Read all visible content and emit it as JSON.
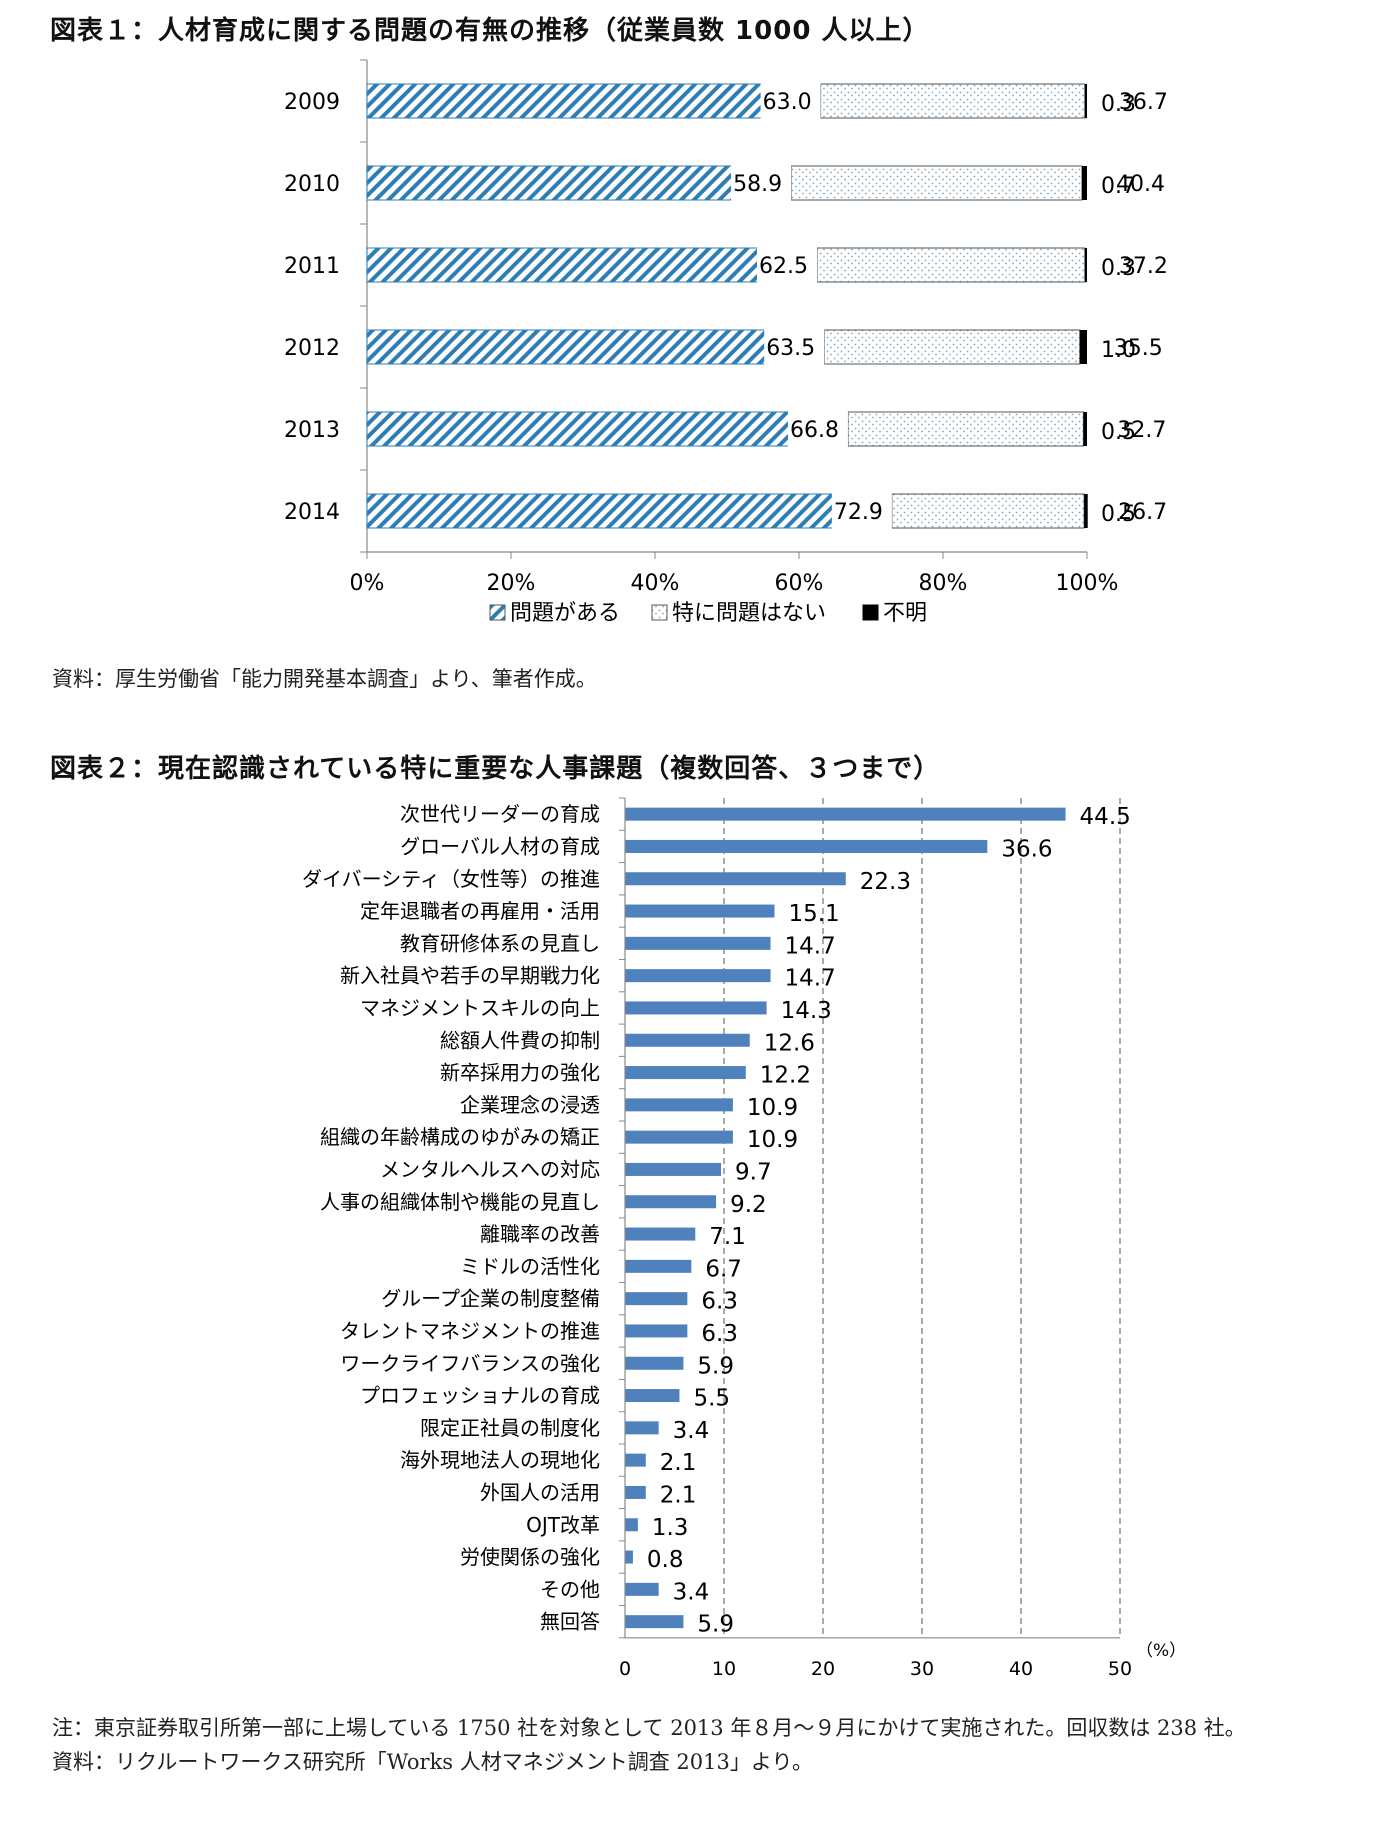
{
  "figure1": {
    "title": "図表１：人材育成に関する問題の有無の推移（従業員数 1000 人以上）",
    "source": "資料：厚生労働省「能力開発基本調査」より、筆者作成。"
  },
  "figure2": {
    "title": "図表２：現在認識されている特に重要な人事課題（複数回答、３つまで）",
    "note": "注：東京証券取引所第一部に上場している 1750 社を対象として 2013 年８月～９月にかけて実施された。回収数は 238 社。",
    "source": "資料：リクルートワークス研究所「Works 人材マネジメント調査 2013」より。"
  },
  "colors": {
    "blue": "#2e7db5",
    "bar_blue": "#4f81bd",
    "dots": "#7fa8c9",
    "black": "#000000"
  },
  "chart_data": [
    {
      "type": "bar",
      "orientation": "horizontal",
      "stacked": "100%",
      "categories": [
        "2009",
        "2010",
        "2011",
        "2012",
        "2013",
        "2014"
      ],
      "series": [
        {
          "name": "問題がある",
          "values": [
            63.0,
            58.9,
            62.5,
            63.5,
            66.8,
            72.9
          ],
          "labels": [
            "63.0",
            "58.9",
            "62.5",
            "63.5",
            "66.8",
            "72.9"
          ],
          "pattern": "diagonal-stripes"
        },
        {
          "name": "特に問題はない",
          "values": [
            36.7,
            40.4,
            37.2,
            35.5,
            32.7,
            26.7
          ],
          "labels": [
            "36.7",
            "40.4",
            "37.2",
            "35.5",
            "32.7",
            "26.7"
          ],
          "pattern": "dots"
        },
        {
          "name": "不明",
          "values": [
            0.3,
            0.7,
            0.3,
            1.0,
            0.5,
            0.5
          ],
          "labels": [
            "0.3",
            "0.7",
            "0.3",
            "1.0",
            "0.5",
            "0.5"
          ],
          "pattern": "solid-black"
        }
      ],
      "xlim": [
        0,
        100
      ],
      "xticks": [
        "0%",
        "20%",
        "40%",
        "60%",
        "80%",
        "100%"
      ],
      "legend": "bottom",
      "grid": false
    },
    {
      "type": "bar",
      "orientation": "horizontal",
      "categories": [
        "次世代リーダーの育成",
        "グローバル人材の育成",
        "ダイバーシティ（女性等）の推進",
        "定年退職者の再雇用・活用",
        "教育研修体系の見直し",
        "新入社員や若手の早期戦力化",
        "マネジメントスキルの向上",
        "総額人件費の抑制",
        "新卒採用力の強化",
        "企業理念の浸透",
        "組織の年齢構成のゆがみの矯正",
        "メンタルヘルスへの対応",
        "人事の組織体制や機能の見直し",
        "離職率の改善",
        "ミドルの活性化",
        "グループ企業の制度整備",
        "タレントマネジメントの推進",
        "ワークライフバランスの強化",
        "プロフェッショナルの育成",
        "限定正社員の制度化",
        "海外現地法人の現地化",
        "外国人の活用",
        "OJT改革",
        "労使関係の強化",
        "その他",
        "無回答"
      ],
      "values": [
        44.5,
        36.6,
        22.3,
        15.1,
        14.7,
        14.7,
        14.3,
        12.6,
        12.2,
        10.9,
        10.9,
        9.7,
        9.2,
        7.1,
        6.7,
        6.3,
        6.3,
        5.9,
        5.5,
        3.4,
        2.1,
        2.1,
        1.3,
        0.8,
        3.4,
        5.9
      ],
      "labels": [
        "44.5",
        "36.6",
        "22.3",
        "15.1",
        "14.7",
        "14.7",
        "14.3",
        "12.6",
        "12.2",
        "10.9",
        "10.9",
        "9.7",
        "9.2",
        "7.1",
        "6.7",
        "6.3",
        "6.3",
        "5.9",
        "5.5",
        "3.4",
        "2.1",
        "2.1",
        "1.3",
        "0.8",
        "3.4",
        "5.9"
      ],
      "xlim": [
        0,
        50
      ],
      "xticks": [
        "0",
        "10",
        "20",
        "30",
        "40",
        "50"
      ],
      "xunit": "（%）",
      "grid": "vertical-dashed"
    }
  ]
}
